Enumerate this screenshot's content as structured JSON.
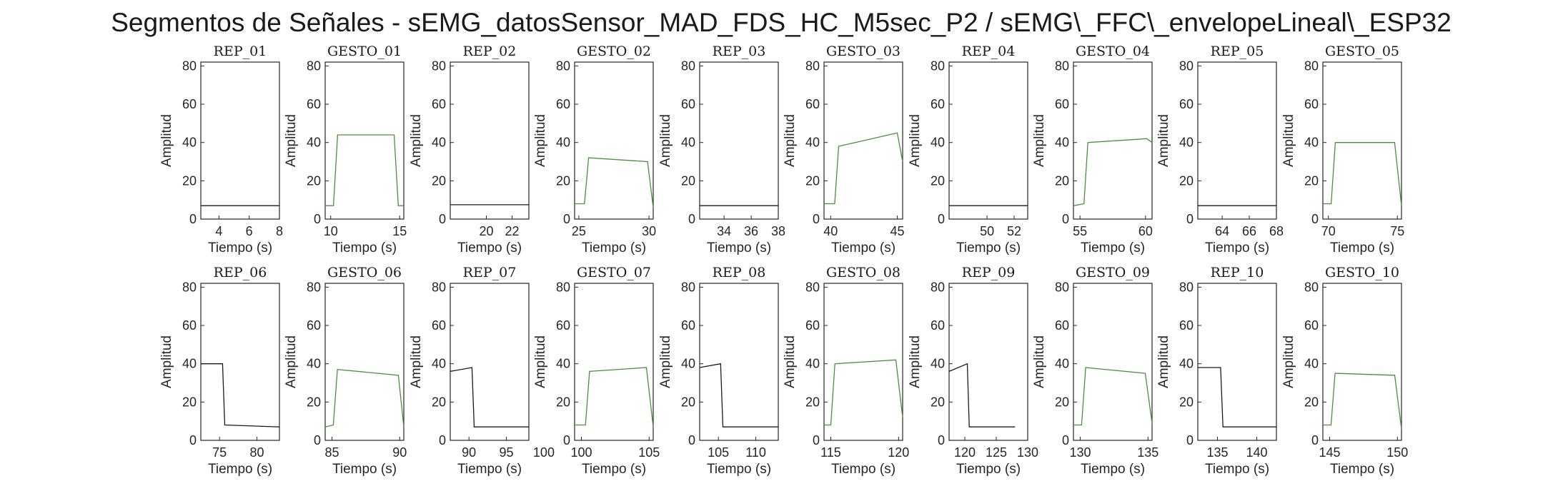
{
  "figure_title": "Segmentos de Señales - sEMG_datosSensor_MAD_FDS_HC_M5sec_P2 / sEMG\\_FFC\\_envelopeLineal\\_ESP32",
  "colors": {
    "rep": "#1a1a1a",
    "gesto": "#4d8f3f"
  },
  "chart_data": [
    {
      "title": "REP_01",
      "type": "line",
      "xlabel": "Tiempo (s)",
      "ylabel": "Amplitud",
      "xlim": [
        2.8,
        8
      ],
      "ylim": [
        0,
        82
      ],
      "xticks": [
        4,
        6,
        8
      ],
      "yticks": [
        0,
        20,
        40,
        60,
        80
      ],
      "kind": "rep",
      "series": [
        {
          "x": [
            2.8,
            8
          ],
          "y": [
            7,
            7
          ]
        }
      ]
    },
    {
      "title": "GESTO_01",
      "type": "line",
      "xlabel": "Tiempo (s)",
      "ylabel": "Amplitud",
      "xlim": [
        9.6,
        15.3
      ],
      "ylim": [
        0,
        82
      ],
      "xticks": [
        10,
        15
      ],
      "yticks": [
        0,
        20,
        40,
        60,
        80
      ],
      "kind": "gesto",
      "series": [
        {
          "x": [
            9.6,
            10.2,
            10.5,
            14.6,
            14.9,
            15.3
          ],
          "y": [
            7,
            7,
            44,
            44,
            7,
            7
          ]
        }
      ]
    },
    {
      "title": "REP_02",
      "type": "line",
      "xlabel": "Tiempo (s)",
      "ylabel": "Amplitud",
      "xlim": [
        17.2,
        23.3
      ],
      "ylim": [
        0,
        82
      ],
      "xticks": [
        20,
        22
      ],
      "yticks": [
        0,
        20,
        40,
        60,
        80
      ],
      "kind": "rep",
      "series": [
        {
          "x": [
            17.2,
            23.3
          ],
          "y": [
            7.5,
            7.5
          ]
        }
      ]
    },
    {
      "title": "GESTO_02",
      "type": "line",
      "xlabel": "Tiempo (s)",
      "ylabel": "Amplitud",
      "xlim": [
        24.7,
        30.3
      ],
      "ylim": [
        0,
        82
      ],
      "xticks": [
        25,
        30
      ],
      "yticks": [
        0,
        20,
        40,
        60,
        80
      ],
      "kind": "gesto",
      "series": [
        {
          "x": [
            24.7,
            25.4,
            25.7,
            29.9,
            30.3
          ],
          "y": [
            8,
            8,
            32,
            30,
            6
          ]
        }
      ]
    },
    {
      "title": "REP_03",
      "type": "line",
      "xlabel": "Tiempo (s)",
      "ylabel": "Amplitud",
      "xlim": [
        32.2,
        38
      ],
      "ylim": [
        0,
        82
      ],
      "xticks": [
        34,
        36,
        38
      ],
      "yticks": [
        0,
        20,
        40,
        60,
        80
      ],
      "kind": "rep",
      "series": [
        {
          "x": [
            32.2,
            38
          ],
          "y": [
            7,
            7
          ]
        }
      ]
    },
    {
      "title": "GESTO_03",
      "type": "line",
      "xlabel": "Tiempo (s)",
      "ylabel": "Amplitud",
      "xlim": [
        39.5,
        45.4
      ],
      "ylim": [
        0,
        82
      ],
      "xticks": [
        40,
        45
      ],
      "yticks": [
        0,
        20,
        40,
        60,
        80
      ],
      "kind": "gesto",
      "series": [
        {
          "x": [
            39.5,
            40.3,
            40.6,
            45,
            45.4
          ],
          "y": [
            8,
            8,
            38,
            45,
            30
          ]
        }
      ]
    },
    {
      "title": "REP_04",
      "type": "line",
      "xlabel": "Tiempo (s)",
      "ylabel": "Amplitud",
      "xlim": [
        47.2,
        53
      ],
      "ylim": [
        0,
        82
      ],
      "xticks": [
        50,
        52
      ],
      "yticks": [
        0,
        20,
        40,
        60,
        80
      ],
      "kind": "rep",
      "series": [
        {
          "x": [
            47.2,
            53
          ],
          "y": [
            7,
            7
          ]
        }
      ]
    },
    {
      "title": "GESTO_04",
      "type": "line",
      "xlabel": "Tiempo (s)",
      "ylabel": "Amplitud",
      "xlim": [
        54.5,
        60.5
      ],
      "ylim": [
        0,
        82
      ],
      "xticks": [
        55,
        60
      ],
      "yticks": [
        0,
        20,
        40,
        60,
        80
      ],
      "kind": "gesto",
      "series": [
        {
          "x": [
            54.5,
            55.3,
            55.6,
            60.1,
            60.5
          ],
          "y": [
            7,
            8,
            40,
            42,
            40
          ]
        }
      ]
    },
    {
      "title": "REP_05",
      "type": "line",
      "xlabel": "Tiempo (s)",
      "ylabel": "Amplitud",
      "xlim": [
        62.2,
        68
      ],
      "ylim": [
        0,
        82
      ],
      "xticks": [
        64,
        66,
        68
      ],
      "yticks": [
        0,
        20,
        40,
        60,
        80
      ],
      "kind": "rep",
      "series": [
        {
          "x": [
            62.2,
            68
          ],
          "y": [
            7,
            7
          ]
        }
      ]
    },
    {
      "title": "GESTO_05",
      "type": "line",
      "xlabel": "Tiempo (s)",
      "ylabel": "Amplitud",
      "xlim": [
        69.6,
        75.3
      ],
      "ylim": [
        0,
        82
      ],
      "xticks": [
        70,
        75
      ],
      "yticks": [
        0,
        20,
        40,
        60,
        80
      ],
      "kind": "gesto",
      "series": [
        {
          "x": [
            69.6,
            70.2,
            70.5,
            74.8,
            75.3
          ],
          "y": [
            8,
            8,
            40,
            40,
            7
          ]
        }
      ]
    },
    {
      "title": "REP_06",
      "type": "line",
      "xlabel": "Tiempo (s)",
      "ylabel": "Amplitud",
      "xlim": [
        72.5,
        83
      ],
      "ylim": [
        0,
        82
      ],
      "xticks": [
        75,
        80
      ],
      "yticks": [
        0,
        20,
        40,
        60,
        80
      ],
      "kind": "rep",
      "series": [
        {
          "x": [
            72.5,
            75.4,
            75.7,
            83
          ],
          "y": [
            40,
            40,
            8,
            7
          ]
        }
      ]
    },
    {
      "title": "GESTO_06",
      "type": "line",
      "xlabel": "Tiempo (s)",
      "ylabel": "Amplitud",
      "xlim": [
        84.5,
        90.3
      ],
      "ylim": [
        0,
        82
      ],
      "xticks": [
        85,
        90
      ],
      "yticks": [
        0,
        20,
        40,
        60,
        80
      ],
      "kind": "gesto",
      "series": [
        {
          "x": [
            84.5,
            85.1,
            85.4,
            89.9,
            90.3
          ],
          "y": [
            7,
            8,
            37,
            34,
            7
          ]
        }
      ]
    },
    {
      "title": "REP_07",
      "type": "line",
      "xlabel": "Tiempo (s)",
      "ylabel": "Amplitud",
      "xlim": [
        87.5,
        98
      ],
      "ylim": [
        0,
        82
      ],
      "xticks": [
        90,
        95,
        100
      ],
      "yticks": [
        0,
        20,
        40,
        60,
        80
      ],
      "kind": "rep",
      "series": [
        {
          "x": [
            87.5,
            90.4,
            90.7,
            98
          ],
          "y": [
            36,
            38,
            7,
            7
          ]
        }
      ]
    },
    {
      "title": "GESTO_07",
      "type": "line",
      "xlabel": "Tiempo (s)",
      "ylabel": "Amplitud",
      "xlim": [
        99.5,
        105.3
      ],
      "ylim": [
        0,
        82
      ],
      "xticks": [
        100,
        105
      ],
      "yticks": [
        0,
        20,
        40,
        60,
        80
      ],
      "kind": "gesto",
      "series": [
        {
          "x": [
            99.5,
            100.3,
            100.6,
            104.8,
            105.3
          ],
          "y": [
            8,
            8,
            36,
            38,
            7
          ]
        }
      ]
    },
    {
      "title": "REP_08",
      "type": "line",
      "xlabel": "Tiempo (s)",
      "ylabel": "Amplitud",
      "xlim": [
        102.5,
        113
      ],
      "ylim": [
        0,
        82
      ],
      "xticks": [
        105,
        110
      ],
      "yticks": [
        0,
        20,
        40,
        60,
        80
      ],
      "kind": "rep",
      "series": [
        {
          "x": [
            102.5,
            105.3,
            105.6,
            113
          ],
          "y": [
            38,
            40,
            7,
            7
          ]
        }
      ]
    },
    {
      "title": "GESTO_08",
      "type": "line",
      "xlabel": "Tiempo (s)",
      "ylabel": "Amplitud",
      "xlim": [
        114.5,
        120.3
      ],
      "ylim": [
        0,
        82
      ],
      "xticks": [
        115,
        120
      ],
      "yticks": [
        0,
        20,
        40,
        60,
        80
      ],
      "kind": "gesto",
      "series": [
        {
          "x": [
            114.5,
            115,
            115.3,
            119.8,
            120.3
          ],
          "y": [
            8,
            8,
            40,
            42,
            12
          ]
        }
      ]
    },
    {
      "title": "REP_09",
      "type": "line",
      "xlabel": "Tiempo (s)",
      "ylabel": "Amplitud",
      "xlim": [
        117.5,
        130
      ],
      "ylim": [
        0,
        82
      ],
      "xticks": [
        120,
        125,
        130
      ],
      "yticks": [
        0,
        20,
        40,
        60,
        80
      ],
      "kind": "rep",
      "series": [
        {
          "x": [
            117.5,
            120.4,
            120.7,
            128
          ],
          "y": [
            36,
            40,
            7,
            7
          ]
        }
      ]
    },
    {
      "title": "GESTO_09",
      "type": "line",
      "xlabel": "Tiempo (s)",
      "ylabel": "Amplitud",
      "xlim": [
        129.5,
        135.3
      ],
      "ylim": [
        0,
        82
      ],
      "xticks": [
        130,
        135
      ],
      "yticks": [
        0,
        20,
        40,
        60,
        80
      ],
      "kind": "gesto",
      "series": [
        {
          "x": [
            129.5,
            130.1,
            130.4,
            134.8,
            135.3
          ],
          "y": [
            8,
            8,
            38,
            35,
            9
          ]
        }
      ]
    },
    {
      "title": "REP_10",
      "type": "line",
      "xlabel": "Tiempo (s)",
      "ylabel": "Amplitud",
      "xlim": [
        132.5,
        142.5
      ],
      "ylim": [
        0,
        82
      ],
      "xticks": [
        135,
        140
      ],
      "yticks": [
        0,
        20,
        40,
        60,
        80
      ],
      "kind": "rep",
      "series": [
        {
          "x": [
            132.5,
            135.4,
            135.7,
            142.5
          ],
          "y": [
            38,
            38,
            7,
            7
          ]
        }
      ]
    },
    {
      "title": "GESTO_10",
      "type": "line",
      "xlabel": "Tiempo (s)",
      "ylabel": "Amplitud",
      "xlim": [
        144.5,
        150.3
      ],
      "ylim": [
        0,
        82
      ],
      "xticks": [
        145,
        150
      ],
      "yticks": [
        0,
        20,
        40,
        60,
        80
      ],
      "kind": "gesto",
      "series": [
        {
          "x": [
            144.5,
            145.1,
            145.4,
            149.8,
            150.3
          ],
          "y": [
            8,
            8,
            35,
            34,
            6
          ]
        }
      ]
    }
  ]
}
